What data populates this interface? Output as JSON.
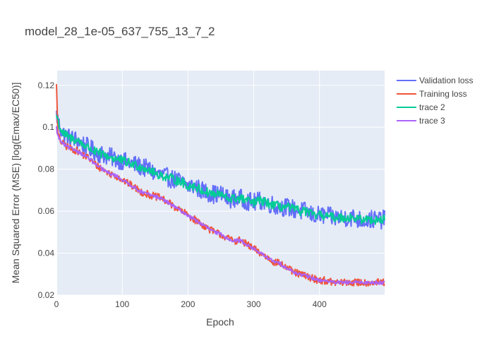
{
  "chart_data": {
    "type": "line",
    "title": "model_28_1e-05_637_755_13_7_2",
    "xlabel": "Epoch",
    "ylabel": "Mean Squared Error (MSE) [log(Emax/EC50)]",
    "xlim": [
      0,
      499
    ],
    "ylim": [
      0.02,
      0.127
    ],
    "x_ticks": [
      0,
      100,
      200,
      300,
      400
    ],
    "y_ticks": [
      0.02,
      0.04,
      0.06,
      0.08,
      0.1,
      0.12
    ],
    "y_tick_labels": [
      "0.02",
      "0.04",
      "0.06",
      "0.08",
      "0.1",
      "0.12"
    ],
    "grid": true,
    "legend_position": "right",
    "series": [
      {
        "name": "Validation loss",
        "color": "#636efa",
        "x": [
          0,
          5,
          10,
          20,
          30,
          40,
          50,
          60,
          70,
          80,
          90,
          100,
          110,
          120,
          130,
          140,
          150,
          160,
          170,
          180,
          190,
          200,
          210,
          220,
          230,
          240,
          250,
          260,
          270,
          280,
          290,
          300,
          310,
          320,
          330,
          340,
          350,
          360,
          370,
          380,
          390,
          400,
          410,
          420,
          430,
          440,
          450,
          460,
          470,
          480,
          490,
          499
        ],
        "y": [
          0.106,
          0.1,
          0.097,
          0.095,
          0.094,
          0.092,
          0.09,
          0.088,
          0.087,
          0.086,
          0.085,
          0.084,
          0.083,
          0.082,
          0.081,
          0.08,
          0.078,
          0.077,
          0.076,
          0.075,
          0.074,
          0.072,
          0.072,
          0.07,
          0.069,
          0.068,
          0.068,
          0.066,
          0.066,
          0.066,
          0.065,
          0.064,
          0.065,
          0.064,
          0.063,
          0.062,
          0.062,
          0.061,
          0.06,
          0.06,
          0.058,
          0.058,
          0.058,
          0.057,
          0.057,
          0.057,
          0.057,
          0.056,
          0.056,
          0.056,
          0.056,
          0.056
        ],
        "noise": 0.0045
      },
      {
        "name": "Training loss",
        "color": "#ef553b",
        "x": [
          0,
          2,
          5,
          10,
          20,
          30,
          40,
          50,
          60,
          70,
          80,
          90,
          100,
          110,
          120,
          130,
          140,
          150,
          160,
          170,
          180,
          190,
          200,
          210,
          220,
          230,
          240,
          250,
          260,
          270,
          280,
          290,
          300,
          310,
          320,
          330,
          340,
          350,
          360,
          370,
          380,
          390,
          400,
          410,
          420,
          430,
          440,
          450,
          460,
          470,
          480,
          490,
          499
        ],
        "y": [
          0.122,
          0.097,
          0.094,
          0.092,
          0.09,
          0.089,
          0.087,
          0.085,
          0.082,
          0.08,
          0.078,
          0.077,
          0.075,
          0.073,
          0.071,
          0.069,
          0.068,
          0.067,
          0.066,
          0.064,
          0.062,
          0.06,
          0.058,
          0.056,
          0.054,
          0.052,
          0.05,
          0.049,
          0.047,
          0.046,
          0.046,
          0.044,
          0.042,
          0.04,
          0.038,
          0.036,
          0.035,
          0.033,
          0.031,
          0.03,
          0.029,
          0.028,
          0.027,
          0.027,
          0.026,
          0.026,
          0.026,
          0.026,
          0.026,
          0.026,
          0.026,
          0.026,
          0.026
        ],
        "noise": 0.0018
      },
      {
        "name": "trace 2",
        "color": "#00cc96",
        "x": [
          0,
          5,
          10,
          20,
          30,
          40,
          50,
          60,
          70,
          80,
          90,
          100,
          110,
          120,
          130,
          140,
          150,
          160,
          170,
          180,
          190,
          200,
          210,
          220,
          230,
          240,
          250,
          260,
          270,
          280,
          290,
          300,
          310,
          320,
          330,
          340,
          350,
          360,
          370,
          380,
          390,
          400,
          410,
          420,
          430,
          440,
          450,
          460,
          470,
          480,
          490,
          499
        ],
        "y": [
          0.106,
          0.1,
          0.097,
          0.095,
          0.094,
          0.092,
          0.09,
          0.088,
          0.087,
          0.086,
          0.085,
          0.084,
          0.083,
          0.082,
          0.081,
          0.08,
          0.078,
          0.077,
          0.076,
          0.075,
          0.074,
          0.072,
          0.072,
          0.07,
          0.069,
          0.068,
          0.068,
          0.066,
          0.066,
          0.066,
          0.065,
          0.064,
          0.065,
          0.064,
          0.063,
          0.062,
          0.062,
          0.061,
          0.06,
          0.06,
          0.058,
          0.058,
          0.058,
          0.057,
          0.057,
          0.057,
          0.057,
          0.056,
          0.056,
          0.056,
          0.056,
          0.056
        ],
        "noise": 0.0022
      },
      {
        "name": "trace 3",
        "color": "#ab63fa",
        "x": [
          0,
          2,
          5,
          10,
          20,
          30,
          40,
          50,
          60,
          70,
          80,
          90,
          100,
          110,
          120,
          130,
          140,
          150,
          160,
          170,
          180,
          190,
          200,
          210,
          220,
          230,
          240,
          250,
          260,
          270,
          280,
          290,
          300,
          310,
          320,
          330,
          340,
          350,
          360,
          370,
          380,
          390,
          400,
          410,
          420,
          430,
          440,
          450,
          460,
          470,
          480,
          490,
          499
        ],
        "y": [
          0.1,
          0.096,
          0.094,
          0.092,
          0.09,
          0.089,
          0.087,
          0.085,
          0.082,
          0.08,
          0.078,
          0.077,
          0.075,
          0.073,
          0.071,
          0.069,
          0.068,
          0.067,
          0.066,
          0.064,
          0.062,
          0.06,
          0.058,
          0.056,
          0.054,
          0.052,
          0.05,
          0.049,
          0.047,
          0.046,
          0.046,
          0.044,
          0.042,
          0.04,
          0.038,
          0.036,
          0.035,
          0.033,
          0.031,
          0.03,
          0.029,
          0.028,
          0.027,
          0.027,
          0.026,
          0.026,
          0.026,
          0.026,
          0.026,
          0.026,
          0.026,
          0.026,
          0.026
        ],
        "noise": 0.0008
      }
    ]
  }
}
